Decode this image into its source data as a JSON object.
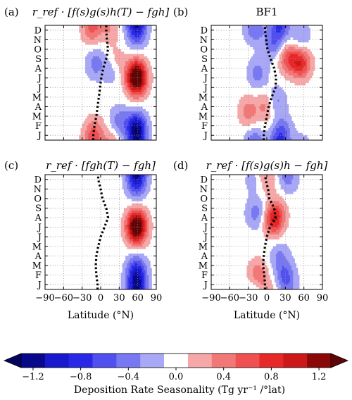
{
  "figure": {
    "xlabel": "Latitude (°N)",
    "colorbar_label": "Deposition Rate Seasonality (Tg yr⁻¹ /°lat)"
  },
  "chart_data": [
    {
      "type": "heatmap",
      "panel_label": "(a)",
      "title": "r_ref · [f(s)g(s)h(T) − fgh]",
      "x_ticks": [
        -90,
        -60,
        -30,
        0,
        30,
        60,
        90
      ],
      "show_x_ticklabels": false,
      "xlim": [
        -90,
        90
      ],
      "y_categories": [
        "J",
        "F",
        "M",
        "A",
        "M",
        "J",
        "J",
        "A",
        "S",
        "O",
        "N",
        "D"
      ],
      "grid": true,
      "dotted_line_latitude": [
        -12,
        -10,
        -7,
        -5,
        -3,
        -1,
        1,
        4,
        9,
        12,
        10,
        9
      ],
      "blobs": [
        {
          "lat": 58,
          "month": 1,
          "amp": -0.8
        },
        {
          "lat": 58,
          "month": 0,
          "amp": -0.6
        },
        {
          "lat": 58,
          "month": 6.5,
          "amp": 1.0
        },
        {
          "lat": 58,
          "month": 5.5,
          "amp": 0.9
        },
        {
          "lat": 58,
          "month": 10.5,
          "amp": -0.5
        },
        {
          "lat": 20,
          "month": 7,
          "amp": -0.4
        },
        {
          "lat": 30,
          "month": 1.5,
          "amp": -0.4
        },
        {
          "lat": -8,
          "month": 7.5,
          "amp": -0.4
        },
        {
          "lat": -10,
          "month": 0.5,
          "amp": 0.4
        },
        {
          "lat": -15,
          "month": 11,
          "amp": 0.4
        },
        {
          "lat": 15,
          "month": 11.2,
          "amp": 0.3
        },
        {
          "lat": 25,
          "month": 7.5,
          "amp": 0.4
        }
      ]
    },
    {
      "type": "heatmap",
      "panel_label": "(b)",
      "title": "BF1",
      "x_ticks": [
        -90,
        -60,
        -30,
        0,
        30,
        60,
        90
      ],
      "show_x_ticklabels": false,
      "xlim": [
        -90,
        90
      ],
      "y_categories": [
        "J",
        "F",
        "M",
        "A",
        "M",
        "J",
        "J",
        "A",
        "S",
        "O",
        "N",
        "D"
      ],
      "grid": true,
      "dotted_line_latitude": [
        -5,
        -3,
        0,
        3,
        8,
        14,
        15,
        12,
        6,
        1,
        -1,
        -3
      ],
      "blobs": [
        {
          "lat": 55,
          "month": 7.5,
          "amp": 0.8
        },
        {
          "lat": 35,
          "month": 8,
          "amp": 0.6
        },
        {
          "lat": 10,
          "month": 9.5,
          "amp": -0.4
        },
        {
          "lat": -20,
          "month": 11.2,
          "amp": -0.5
        },
        {
          "lat": 20,
          "month": 11.2,
          "amp": -0.5
        },
        {
          "lat": -15,
          "month": 6.5,
          "amp": -0.4
        },
        {
          "lat": -30,
          "month": 2.5,
          "amp": 0.4
        },
        {
          "lat": 0,
          "month": 3,
          "amp": 0.4
        },
        {
          "lat": 15,
          "month": 3.5,
          "amp": -0.4
        },
        {
          "lat": 25,
          "month": 0.5,
          "amp": -0.4
        },
        {
          "lat": 55,
          "month": 10.5,
          "amp": -0.3
        }
      ]
    },
    {
      "type": "heatmap",
      "panel_label": "(c)",
      "title": "r_ref · [fgh(T) − fgh]",
      "x_ticks": [
        -90,
        -60,
        -30,
        0,
        30,
        60,
        90
      ],
      "show_x_ticklabels": true,
      "xlim": [
        -90,
        90
      ],
      "y_categories": [
        "J",
        "F",
        "M",
        "A",
        "M",
        "J",
        "J",
        "A",
        "S",
        "O",
        "N",
        "D"
      ],
      "grid": true,
      "dotted_line_latitude": [
        -5,
        -7,
        -8,
        -7,
        -4,
        0,
        6,
        12,
        9,
        3,
        0,
        -4
      ],
      "blobs": [
        {
          "lat": 58,
          "month": 6.5,
          "amp": 1.0
        },
        {
          "lat": 58,
          "month": 5.5,
          "amp": 0.8
        },
        {
          "lat": 58,
          "month": 0.5,
          "amp": -0.7
        },
        {
          "lat": 58,
          "month": 11.2,
          "amp": -0.6
        },
        {
          "lat": 58,
          "month": 1.8,
          "amp": -0.5
        },
        {
          "lat": 58,
          "month": 10,
          "amp": -0.3
        }
      ]
    },
    {
      "type": "heatmap",
      "panel_label": "(d)",
      "title": "r_ref · [f(s)g(s)h − fgh]",
      "x_ticks": [
        -90,
        -60,
        -30,
        0,
        30,
        60,
        90
      ],
      "show_x_ticklabels": true,
      "xlim": [
        -90,
        90
      ],
      "y_categories": [
        "J",
        "F",
        "M",
        "A",
        "M",
        "J",
        "J",
        "A",
        "S",
        "O",
        "N",
        "D"
      ],
      "grid": true,
      "dotted_line_latitude": [
        -3,
        -4,
        -6,
        -5,
        -3,
        0,
        5,
        14,
        12,
        4,
        2,
        -2
      ],
      "blobs": [
        {
          "lat": 10,
          "month": 6.5,
          "amp": 0.6
        },
        {
          "lat": 15,
          "month": 7.5,
          "amp": 0.5
        },
        {
          "lat": -18,
          "month": 7.5,
          "amp": -0.4
        },
        {
          "lat": -15,
          "month": 1,
          "amp": 0.5
        },
        {
          "lat": 30,
          "month": 1,
          "amp": -0.5
        },
        {
          "lat": 0,
          "month": 11,
          "amp": 0.3
        },
        {
          "lat": -20,
          "month": 11.3,
          "amp": -0.3
        },
        {
          "lat": 35,
          "month": 11,
          "amp": -0.3
        },
        {
          "lat": 20,
          "month": 3,
          "amp": -0.3
        }
      ]
    }
  ],
  "colorbar": {
    "type": "colorbar",
    "range": [
      -1.3,
      1.3
    ],
    "tick_values": [
      -1.2,
      -0.8,
      -0.4,
      0.0,
      0.4,
      0.8,
      1.2
    ],
    "tick_labels": [
      "−1.2",
      "−0.8",
      "−0.4",
      "0.0",
      "0.4",
      "0.8",
      "1.2"
    ],
    "bin_edges": [
      -1.3,
      -1.1,
      -0.9,
      -0.7,
      -0.5,
      -0.3,
      -0.1,
      0.1,
      0.3,
      0.5,
      0.7,
      0.9,
      1.1,
      1.3
    ],
    "colors": [
      "#08088a",
      "#1818cc",
      "#2828e6",
      "#5050f0",
      "#7878f2",
      "#a8a8f6",
      "#ffffff",
      "#f6a8a8",
      "#f27878",
      "#f05050",
      "#e62828",
      "#cc1818",
      "#8a0808"
    ],
    "under_color": "#050560",
    "over_color": "#600505"
  }
}
